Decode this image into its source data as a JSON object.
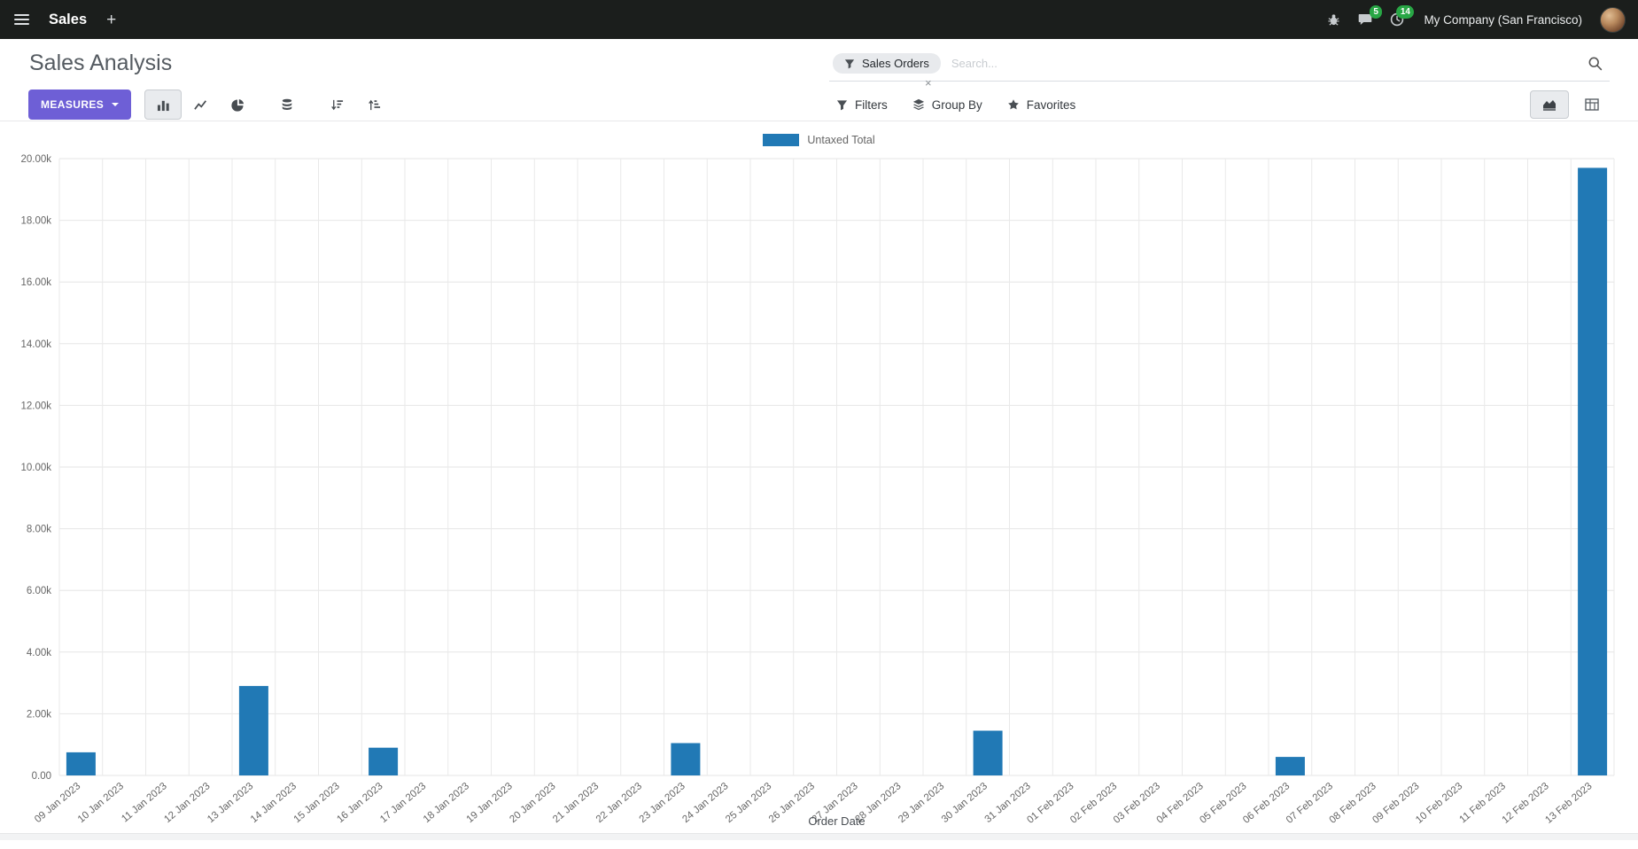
{
  "colors": {
    "navbar_bg": "#1b1e1c",
    "bar": "#2179b5",
    "primary_button": "#6e5fd6",
    "badge": "#28a745"
  },
  "navbar": {
    "app_name": "Sales",
    "plus": "+",
    "messages_badge": "5",
    "activities_badge": "14",
    "company": "My Company (San Francisco)"
  },
  "control_panel": {
    "title": "Sales Analysis",
    "search": {
      "facet_label": "Sales Orders",
      "facet_remove": "×",
      "placeholder": "Search..."
    },
    "toolbar": {
      "measures_label": "MEASURES",
      "filters_label": "Filters",
      "groupby_label": "Group By",
      "favorites_label": "Favorites"
    }
  },
  "chart_data": {
    "type": "bar",
    "title": "",
    "legend": [
      "Untaxed Total"
    ],
    "xlabel": "Order Date",
    "ylabel": "",
    "ylim": [
      0,
      20000
    ],
    "ytick_step": 2000,
    "ytick_labels": [
      "0.00",
      "2.00k",
      "4.00k",
      "6.00k",
      "8.00k",
      "10.00k",
      "12.00k",
      "14.00k",
      "16.00k",
      "18.00k",
      "20.00k"
    ],
    "grid": true,
    "legend_position": "top",
    "categories": [
      "09 Jan 2023",
      "10 Jan 2023",
      "11 Jan 2023",
      "12 Jan 2023",
      "13 Jan 2023",
      "14 Jan 2023",
      "15 Jan 2023",
      "16 Jan 2023",
      "17 Jan 2023",
      "18 Jan 2023",
      "19 Jan 2023",
      "20 Jan 2023",
      "21 Jan 2023",
      "22 Jan 2023",
      "23 Jan 2023",
      "24 Jan 2023",
      "25 Jan 2023",
      "26 Jan 2023",
      "27 Jan 2023",
      "28 Jan 2023",
      "29 Jan 2023",
      "30 Jan 2023",
      "31 Jan 2023",
      "01 Feb 2023",
      "02 Feb 2023",
      "03 Feb 2023",
      "04 Feb 2023",
      "05 Feb 2023",
      "06 Feb 2023",
      "07 Feb 2023",
      "08 Feb 2023",
      "09 Feb 2023",
      "10 Feb 2023",
      "11 Feb 2023",
      "12 Feb 2023",
      "13 Feb 2023"
    ],
    "values": [
      750,
      0,
      0,
      0,
      2900,
      0,
      0,
      900,
      0,
      0,
      0,
      0,
      0,
      0,
      1050,
      0,
      0,
      0,
      0,
      0,
      0,
      1450,
      0,
      0,
      0,
      0,
      0,
      0,
      600,
      0,
      0,
      0,
      0,
      0,
      0,
      19700
    ]
  }
}
